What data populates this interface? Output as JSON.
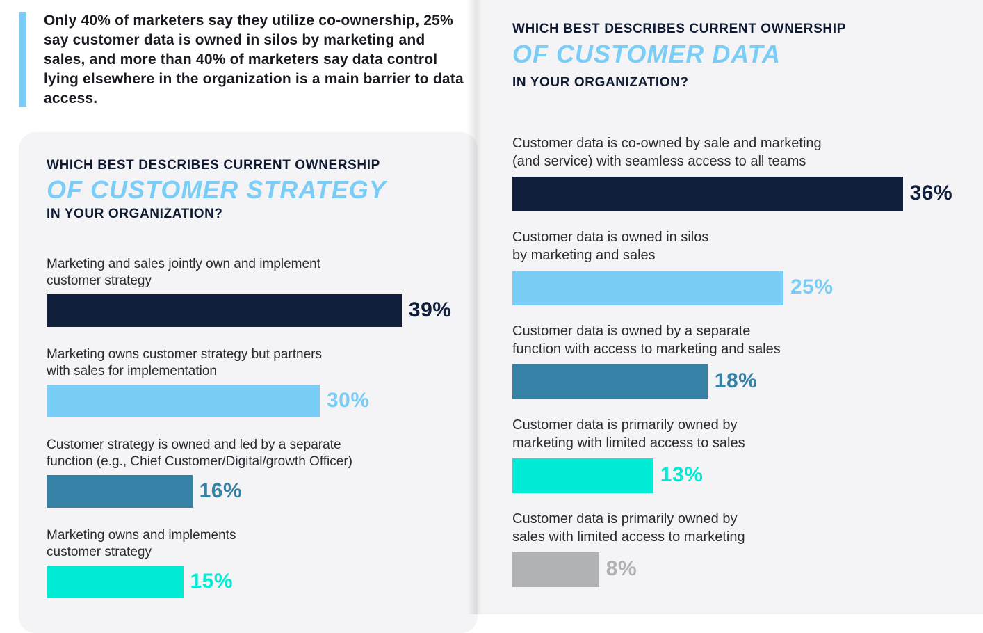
{
  "intro": {
    "text": "Only 40% of marketers say they utilize co-ownership, 25% say customer data is owned in silos by marketing and sales, and more than 40% of marketers say data control lying elsewhere in the organization is a main barrier to data access."
  },
  "colors": {
    "navy": "#0f1f3c",
    "light_blue": "#7acdf7",
    "steel_blue": "#3682a6",
    "aqua": "#00ecd6",
    "gray": "#b1b2b6"
  },
  "chart_data": [
    {
      "type": "bar",
      "orientation": "horizontal",
      "title_line1": "WHICH BEST DESCRIBES CURRENT OWNERSHIP",
      "title_line2": "OF CUSTOMER STRATEGY",
      "title_line3": "IN YOUR ORGANIZATION?",
      "unit": "%",
      "items": [
        {
          "label_lines": [
            "Marketing and sales jointly own and implement",
            "customer strategy"
          ],
          "value": 39,
          "display": "39%",
          "color": "#0f1f3c",
          "label_color": "#0f1f3c"
        },
        {
          "label_lines": [
            "Marketing owns customer strategy but partners",
            "with sales for implementation"
          ],
          "value": 30,
          "display": "30%",
          "color": "#7acdf7",
          "label_color": "#7acdf7"
        },
        {
          "label_lines": [
            "Customer strategy is owned and led by a separate",
            "function (e.g., Chief Customer/Digital/growth Officer)"
          ],
          "value": 16,
          "display": "16%",
          "color": "#3682a6",
          "label_color": "#3682a6"
        },
        {
          "label_lines": [
            "Marketing owns and implements",
            "customer strategy"
          ],
          "value": 15,
          "display": "15%",
          "color": "#00ecd6",
          "label_color": "#00ecd6"
        }
      ]
    },
    {
      "type": "bar",
      "orientation": "horizontal",
      "title_line1": "WHICH BEST DESCRIBES CURRENT OWNERSHIP",
      "title_line2": "OF CUSTOMER DATA",
      "title_line3": "IN YOUR ORGANIZATION?",
      "unit": "%",
      "items": [
        {
          "label_lines": [
            "Customer data is co-owned by sale and marketing",
            "(and service) with seamless access to all teams"
          ],
          "value": 36,
          "display": "36%",
          "color": "#0f1f3c",
          "label_color": "#0f1f3c"
        },
        {
          "label_lines": [
            "Customer data is owned in silos",
            "by marketing and sales"
          ],
          "value": 25,
          "display": "25%",
          "color": "#7acdf7",
          "label_color": "#7acdf7"
        },
        {
          "label_lines": [
            "Customer data is owned by a separate",
            "function with access to marketing and sales"
          ],
          "value": 18,
          "display": "18%",
          "color": "#3682a6",
          "label_color": "#3682a6"
        },
        {
          "label_lines": [
            "Customer data is primarily owned by",
            "marketing with limited access to sales"
          ],
          "value": 13,
          "display": "13%",
          "color": "#00ecd6",
          "label_color": "#00ecd6"
        },
        {
          "label_lines": [
            "Customer data is primarily owned by",
            "sales with limited access to marketing"
          ],
          "value": 8,
          "display": "8%",
          "color": "#b1b2b6",
          "label_color": "#b1b2b6"
        }
      ]
    }
  ]
}
